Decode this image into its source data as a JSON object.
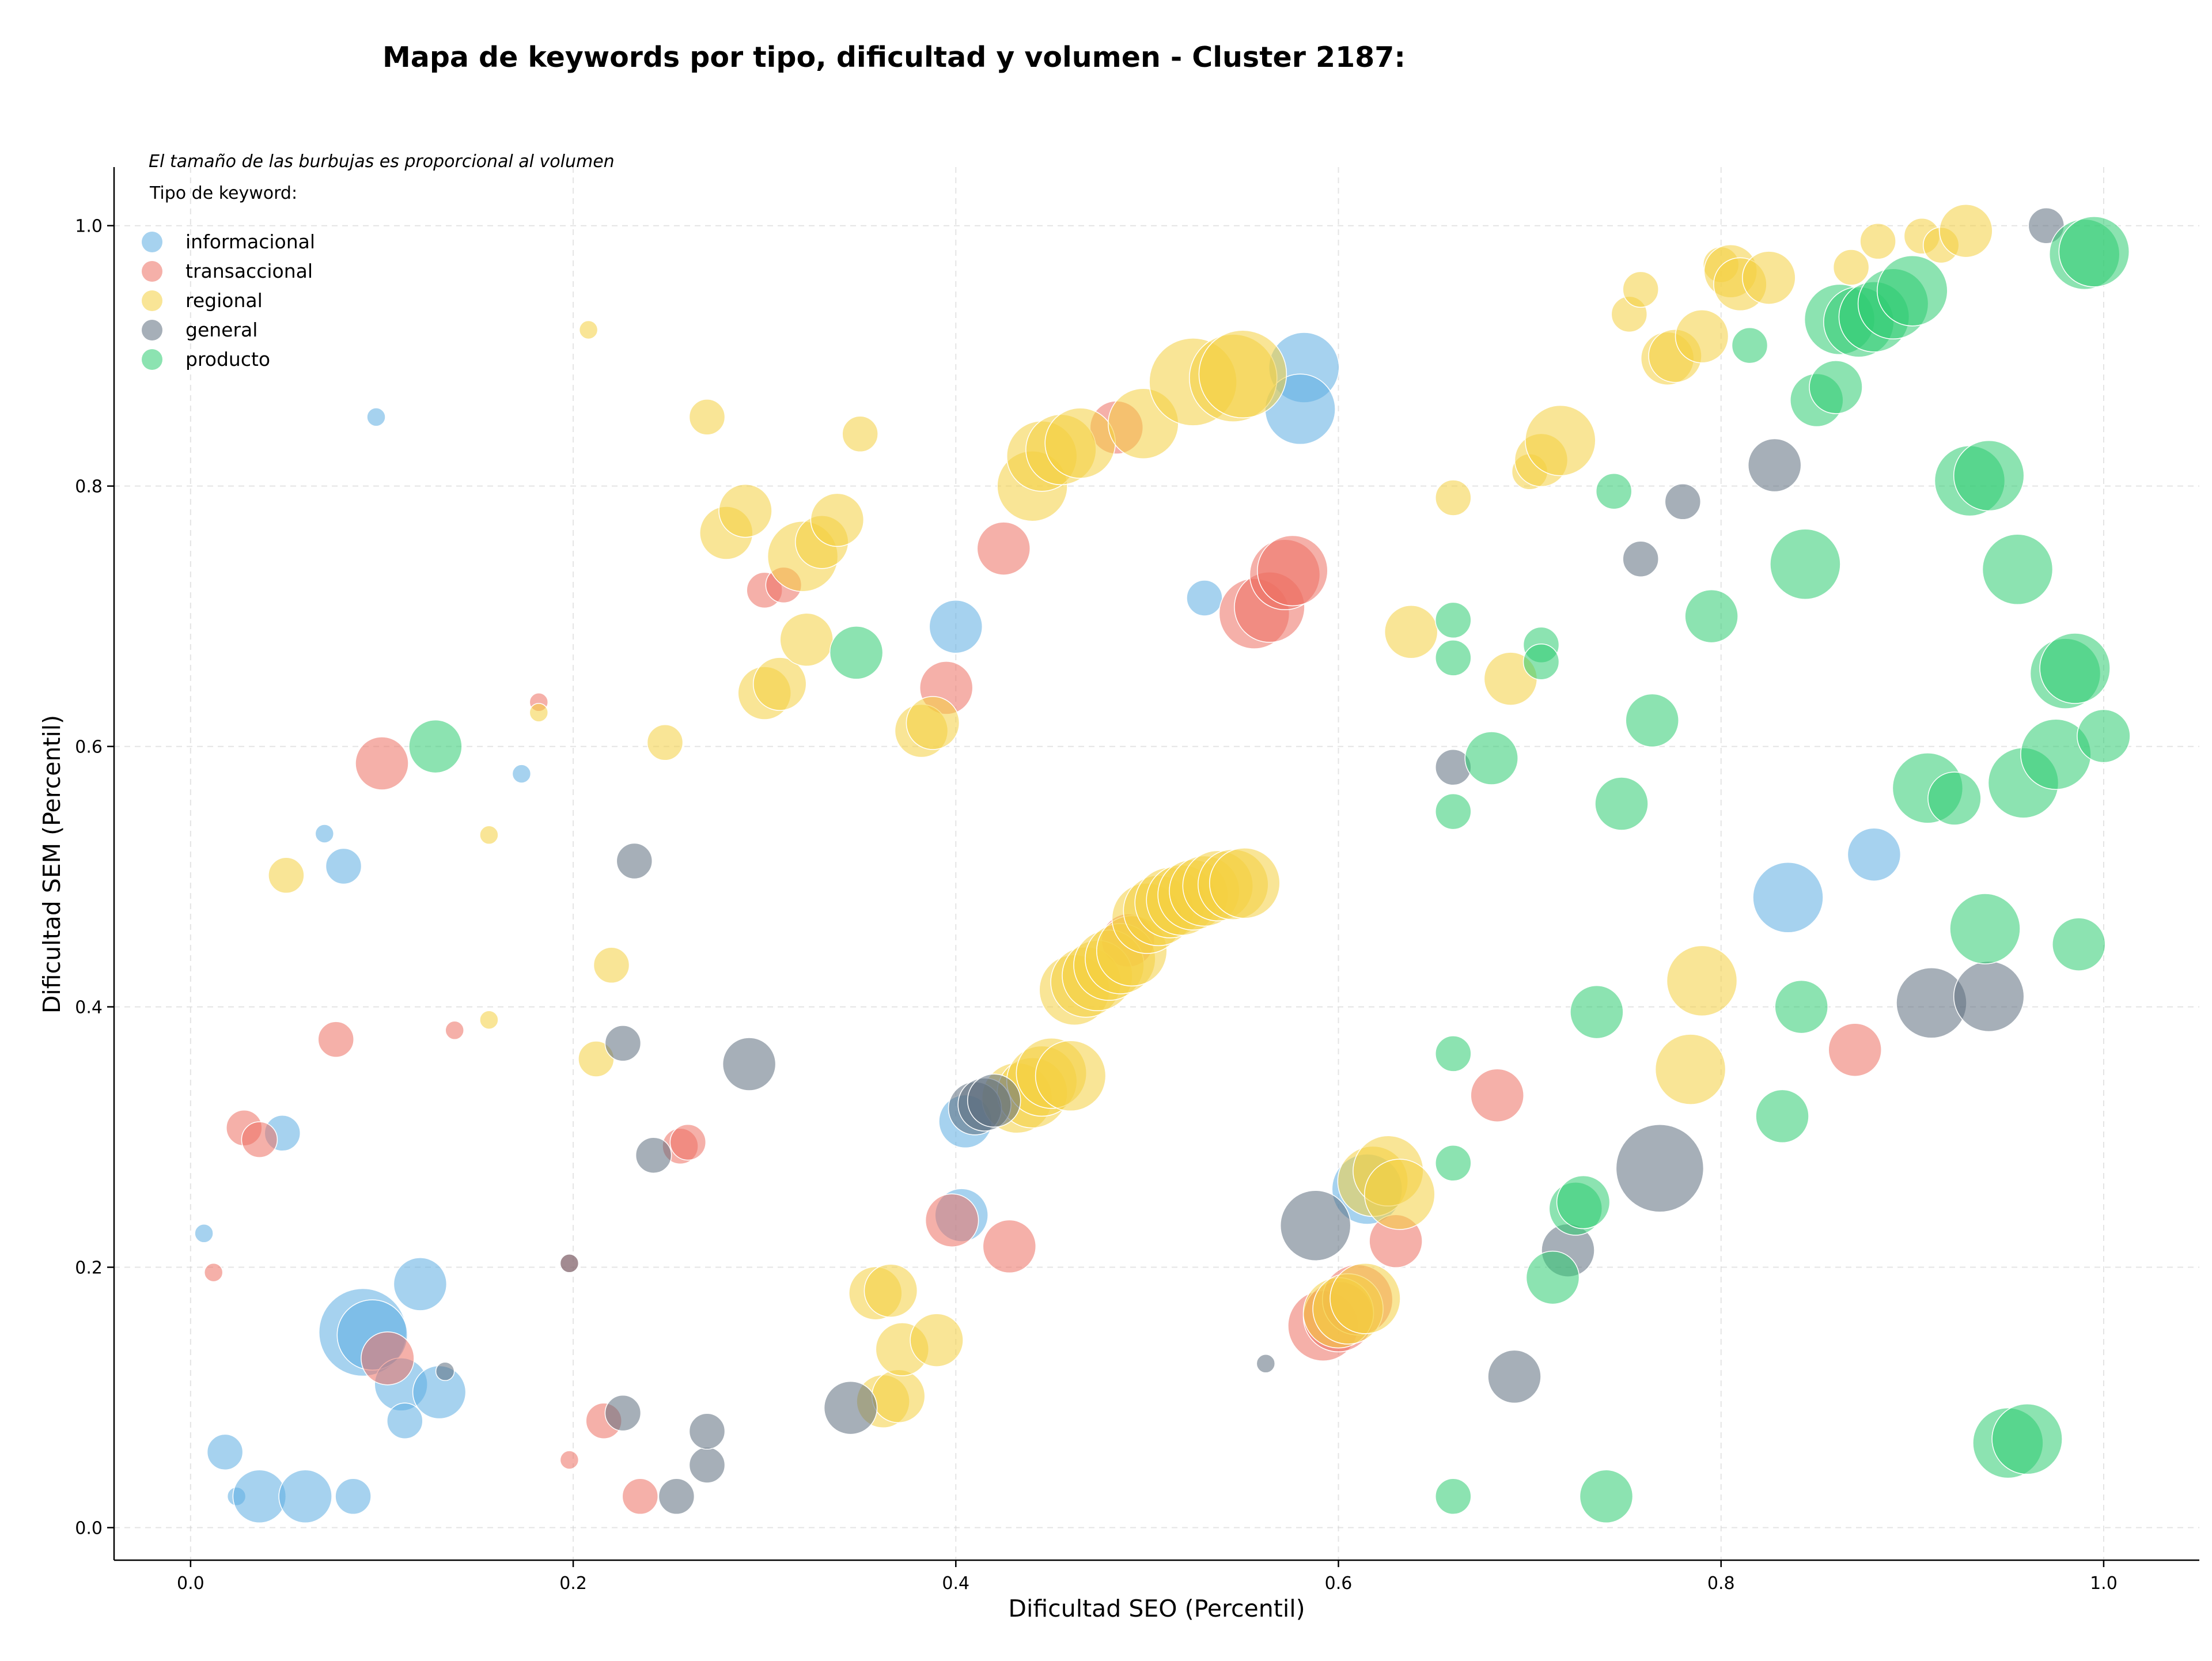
{
  "chart_data": {
    "type": "scatter",
    "title": "Mapa de keywords por tipo, dificultad y volumen - Cluster 2187:",
    "xlabel": "Dificultad SEO (Percentil)",
    "ylabel": "Dificultad SEM (Percentil)",
    "xlim": [
      -0.04,
      1.05
    ],
    "ylim": [
      -0.025,
      1.045
    ],
    "xticks": [
      "0.0",
      "0.2",
      "0.4",
      "0.6",
      "0.8",
      "1.0"
    ],
    "yticks": [
      "0.0",
      "0.2",
      "0.4",
      "0.6",
      "0.8",
      "1.0"
    ],
    "grid": true,
    "annotation": "El tamaño de las burbujas es proporcional al volumen",
    "legend": {
      "title": "Tipo de keyword:",
      "placement": "top-left"
    },
    "series": [
      {
        "name": "informacional",
        "color": "#5DADE2",
        "points": [
          [
            0.097,
            0.853,
            1
          ],
          [
            0.007,
            0.226,
            1
          ],
          [
            0.048,
            0.303,
            2
          ],
          [
            0.08,
            0.508,
            2
          ],
          [
            0.07,
            0.533,
            1
          ],
          [
            0.173,
            0.579,
            1
          ],
          [
            0.018,
            0.058,
            2
          ],
          [
            0.024,
            0.024,
            1
          ],
          [
            0.036,
            0.024,
            3
          ],
          [
            0.06,
            0.024,
            3
          ],
          [
            0.085,
            0.024,
            2
          ],
          [
            0.09,
            0.15,
            5
          ],
          [
            0.095,
            0.148,
            4
          ],
          [
            0.11,
            0.11,
            3
          ],
          [
            0.13,
            0.104,
            3
          ],
          [
            0.12,
            0.187,
            3
          ],
          [
            0.112,
            0.082,
            2
          ],
          [
            0.4,
            0.692,
            3
          ],
          [
            0.582,
            0.891,
            4
          ],
          [
            0.58,
            0.859,
            4
          ],
          [
            0.53,
            0.714,
            2
          ],
          [
            0.405,
            0.312,
            3
          ],
          [
            0.403,
            0.24,
            3
          ],
          [
            0.615,
            0.26,
            4
          ],
          [
            0.835,
            0.484,
            4
          ],
          [
            0.88,
            0.517,
            3
          ]
        ]
      },
      {
        "name": "transaccional",
        "color": "#EC7063",
        "points": [
          [
            0.012,
            0.196,
            1
          ],
          [
            0.028,
            0.307,
            2
          ],
          [
            0.036,
            0.298,
            2
          ],
          [
            0.076,
            0.375,
            2
          ],
          [
            0.1,
            0.587,
            3
          ],
          [
            0.103,
            0.13,
            3
          ],
          [
            0.138,
            0.382,
            1
          ],
          [
            0.182,
            0.634,
            1
          ],
          [
            0.198,
            0.203,
            1
          ],
          [
            0.216,
            0.082,
            2
          ],
          [
            0.235,
            0.024,
            2
          ],
          [
            0.198,
            0.052,
            1
          ],
          [
            0.256,
            0.293,
            2
          ],
          [
            0.26,
            0.296,
            2
          ],
          [
            0.3,
            0.72,
            2
          ],
          [
            0.31,
            0.724,
            2
          ],
          [
            0.395,
            0.645,
            3
          ],
          [
            0.398,
            0.236,
            3
          ],
          [
            0.425,
            0.752,
            3
          ],
          [
            0.428,
            0.216,
            3
          ],
          [
            0.484,
            0.845,
            3
          ],
          [
            0.49,
            0.451,
            3
          ],
          [
            0.556,
            0.702,
            4
          ],
          [
            0.564,
            0.707,
            4
          ],
          [
            0.572,
            0.732,
            4
          ],
          [
            0.576,
            0.735,
            4
          ],
          [
            0.592,
            0.155,
            4
          ],
          [
            0.6,
            0.162,
            4
          ],
          [
            0.61,
            0.175,
            4
          ],
          [
            0.63,
            0.22,
            3
          ],
          [
            0.683,
            0.332,
            3
          ],
          [
            0.87,
            0.367,
            3
          ]
        ]
      },
      {
        "name": "regional",
        "color": "#F4D03F",
        "points": [
          [
            0.208,
            0.92,
            1
          ],
          [
            0.05,
            0.501,
            2
          ],
          [
            0.156,
            0.532,
            1
          ],
          [
            0.156,
            0.39,
            1
          ],
          [
            0.182,
            0.626,
            1
          ],
          [
            0.212,
            0.36,
            2
          ],
          [
            0.22,
            0.432,
            2
          ],
          [
            0.248,
            0.603,
            2
          ],
          [
            0.27,
            0.853,
            2
          ],
          [
            0.28,
            0.764,
            3
          ],
          [
            0.29,
            0.781,
            3
          ],
          [
            0.3,
            0.641,
            3
          ],
          [
            0.308,
            0.648,
            3
          ],
          [
            0.32,
            0.746,
            4
          ],
          [
            0.322,
            0.682,
            3
          ],
          [
            0.33,
            0.757,
            3
          ],
          [
            0.338,
            0.774,
            3
          ],
          [
            0.35,
            0.84,
            2
          ],
          [
            0.358,
            0.18,
            3
          ],
          [
            0.362,
            0.097,
            3
          ],
          [
            0.366,
            0.182,
            3
          ],
          [
            0.37,
            0.101,
            3
          ],
          [
            0.372,
            0.137,
            3
          ],
          [
            0.382,
            0.612,
            3
          ],
          [
            0.388,
            0.618,
            3
          ],
          [
            0.39,
            0.144,
            3
          ],
          [
            0.432,
            0.33,
            4
          ],
          [
            0.44,
            0.334,
            4
          ],
          [
            0.445,
            0.343,
            4
          ],
          [
            0.45,
            0.349,
            4
          ],
          [
            0.46,
            0.347,
            4
          ],
          [
            0.44,
            0.8,
            4
          ],
          [
            0.445,
            0.823,
            4
          ],
          [
            0.455,
            0.828,
            4
          ],
          [
            0.465,
            0.833,
            4
          ],
          [
            0.462,
            0.413,
            4
          ],
          [
            0.468,
            0.419,
            4
          ],
          [
            0.474,
            0.424,
            4
          ],
          [
            0.48,
            0.432,
            4
          ],
          [
            0.486,
            0.437,
            4
          ],
          [
            0.492,
            0.443,
            4
          ],
          [
            0.5,
            0.468,
            4
          ],
          [
            0.506,
            0.474,
            4
          ],
          [
            0.512,
            0.48,
            4
          ],
          [
            0.518,
            0.482,
            4
          ],
          [
            0.524,
            0.486,
            4
          ],
          [
            0.53,
            0.489,
            4
          ],
          [
            0.537,
            0.493,
            4
          ],
          [
            0.545,
            0.494,
            4
          ],
          [
            0.551,
            0.495,
            4
          ],
          [
            0.498,
            0.848,
            4
          ],
          [
            0.524,
            0.88,
            5
          ],
          [
            0.545,
            0.883,
            5
          ],
          [
            0.55,
            0.886,
            5
          ],
          [
            0.6,
            0.165,
            4
          ],
          [
            0.605,
            0.168,
            4
          ],
          [
            0.614,
            0.176,
            4
          ],
          [
            0.618,
            0.266,
            4
          ],
          [
            0.626,
            0.274,
            4
          ],
          [
            0.632,
            0.256,
            4
          ],
          [
            0.638,
            0.688,
            3
          ],
          [
            0.66,
            0.791,
            2
          ],
          [
            0.69,
            0.652,
            3
          ],
          [
            0.7,
            0.811,
            2
          ],
          [
            0.706,
            0.82,
            3
          ],
          [
            0.716,
            0.835,
            4
          ],
          [
            0.752,
            0.932,
            2
          ],
          [
            0.758,
            0.951,
            2
          ],
          [
            0.772,
            0.898,
            3
          ],
          [
            0.776,
            0.9,
            3
          ],
          [
            0.784,
            0.352,
            4
          ],
          [
            0.79,
            0.42,
            4
          ],
          [
            0.79,
            0.915,
            3
          ],
          [
            0.8,
            0.97,
            2
          ],
          [
            0.805,
            0.965,
            3
          ],
          [
            0.81,
            0.955,
            3
          ],
          [
            0.825,
            0.96,
            3
          ],
          [
            0.868,
            0.968,
            2
          ],
          [
            0.882,
            0.988,
            2
          ],
          [
            0.905,
            0.992,
            2
          ],
          [
            0.915,
            0.985,
            2
          ],
          [
            0.928,
            0.996,
            3
          ]
        ]
      },
      {
        "name": "general",
        "color": "#5D6D7E",
        "points": [
          [
            0.133,
            0.12,
            1
          ],
          [
            0.198,
            0.203,
            1
          ],
          [
            0.226,
            0.372,
            2
          ],
          [
            0.232,
            0.512,
            2
          ],
          [
            0.226,
            0.088,
            2
          ],
          [
            0.242,
            0.286,
            2
          ],
          [
            0.254,
            0.024,
            2
          ],
          [
            0.27,
            0.048,
            2
          ],
          [
            0.27,
            0.074,
            2
          ],
          [
            0.292,
            0.356,
            3
          ],
          [
            0.345,
            0.092,
            3
          ],
          [
            0.41,
            0.322,
            3
          ],
          [
            0.415,
            0.325,
            3
          ],
          [
            0.42,
            0.328,
            3
          ],
          [
            0.562,
            0.126,
            1
          ],
          [
            0.588,
            0.232,
            4
          ],
          [
            0.66,
            0.584,
            2
          ],
          [
            0.692,
            0.116,
            3
          ],
          [
            0.72,
            0.213,
            3
          ],
          [
            0.758,
            0.744,
            2
          ],
          [
            0.768,
            0.276,
            5
          ],
          [
            0.78,
            0.788,
            2
          ],
          [
            0.828,
            0.816,
            3
          ],
          [
            0.91,
            0.403,
            4
          ],
          [
            0.94,
            0.408,
            4
          ],
          [
            0.97,
            1.0,
            2
          ]
        ]
      },
      {
        "name": "producto",
        "color": "#2ECC71",
        "points": [
          [
            0.128,
            0.6,
            3
          ],
          [
            0.348,
            0.672,
            3
          ],
          [
            0.66,
            0.697,
            2
          ],
          [
            0.66,
            0.668,
            2
          ],
          [
            0.66,
            0.55,
            2
          ],
          [
            0.66,
            0.364,
            2
          ],
          [
            0.66,
            0.28,
            2
          ],
          [
            0.66,
            0.024,
            2
          ],
          [
            0.68,
            0.591,
            3
          ],
          [
            0.706,
            0.678,
            2
          ],
          [
            0.706,
            0.665,
            2
          ],
          [
            0.712,
            0.192,
            3
          ],
          [
            0.724,
            0.245,
            3
          ],
          [
            0.728,
            0.25,
            3
          ],
          [
            0.735,
            0.396,
            3
          ],
          [
            0.74,
            0.024,
            3
          ],
          [
            0.744,
            0.796,
            2
          ],
          [
            0.748,
            0.556,
            3
          ],
          [
            0.764,
            0.62,
            3
          ],
          [
            0.795,
            0.7,
            3
          ],
          [
            0.815,
            0.908,
            2
          ],
          [
            0.832,
            0.316,
            3
          ],
          [
            0.842,
            0.4,
            3
          ],
          [
            0.844,
            0.74,
            4
          ],
          [
            0.85,
            0.866,
            3
          ],
          [
            0.86,
            0.876,
            3
          ],
          [
            0.862,
            0.928,
            4
          ],
          [
            0.872,
            0.926,
            4
          ],
          [
            0.88,
            0.93,
            4
          ],
          [
            0.89,
            0.94,
            4
          ],
          [
            0.9,
            0.95,
            4
          ],
          [
            0.908,
            0.568,
            4
          ],
          [
            0.922,
            0.56,
            3
          ],
          [
            0.93,
            0.804,
            4
          ],
          [
            0.938,
            0.46,
            4
          ],
          [
            0.94,
            0.808,
            4
          ],
          [
            0.95,
            0.065,
            4
          ],
          [
            0.955,
            0.736,
            4
          ],
          [
            0.958,
            0.572,
            4
          ],
          [
            0.96,
            0.068,
            4
          ],
          [
            0.975,
            0.594,
            4
          ],
          [
            0.98,
            0.656,
            4
          ],
          [
            0.985,
            0.66,
            4
          ],
          [
            0.987,
            0.448,
            3
          ],
          [
            0.99,
            0.978,
            4
          ],
          [
            0.995,
            0.98,
            4
          ],
          [
            1.0,
            0.608,
            3
          ]
        ]
      }
    ]
  }
}
